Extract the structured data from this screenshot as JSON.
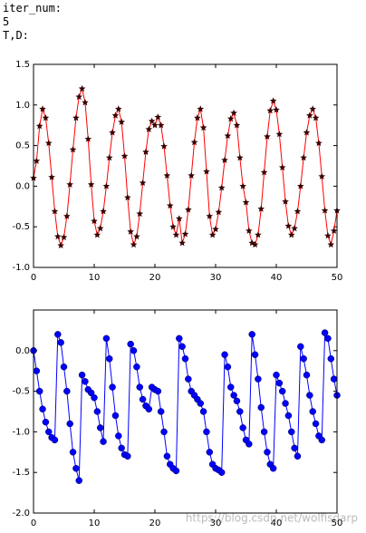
{
  "header": {
    "lines": [
      "iter_num:",
      "5",
      "T,D:"
    ]
  },
  "watermark": "https://blog.csdn.net/wolfisdarp",
  "chart_data": [
    {
      "type": "line",
      "marker": "star",
      "color": "#ff0000",
      "marker_color": "#3a0000",
      "x": [
        0,
        0.5,
        1,
        1.5,
        2,
        2.5,
        3,
        3.5,
        4,
        4.5,
        5,
        5.5,
        6,
        6.5,
        7,
        7.5,
        8,
        8.5,
        9,
        9.5,
        10,
        10.5,
        11,
        11.5,
        12,
        12.5,
        13,
        13.5,
        14,
        14.5,
        15,
        15.5,
        16,
        16.5,
        17,
        17.5,
        18,
        18.5,
        19,
        19.5,
        20,
        20.5,
        21,
        21.5,
        22,
        22.5,
        23,
        23.5,
        24,
        24.5,
        25,
        25.5,
        26,
        26.5,
        27,
        27.5,
        28,
        28.5,
        29,
        29.5,
        30,
        30.5,
        31,
        31.5,
        32,
        32.5,
        33,
        33.5,
        34,
        34.5,
        35,
        35.5,
        36,
        36.5,
        37,
        37.5,
        38,
        38.5,
        39,
        39.5,
        40,
        40.5,
        41,
        41.5,
        42,
        42.5,
        43,
        43.5,
        44,
        44.5,
        45,
        45.5,
        46,
        46.5,
        47,
        47.5,
        48,
        48.5,
        49,
        49.5,
        50
      ],
      "series": [
        {
          "values": [
            0.1,
            0.31,
            0.74,
            0.95,
            0.84,
            0.53,
            0.11,
            -0.31,
            -0.62,
            -0.73,
            -0.63,
            -0.37,
            0.02,
            0.45,
            0.84,
            1.1,
            1.2,
            1.03,
            0.58,
            0.02,
            -0.43,
            -0.6,
            -0.52,
            -0.31,
            0.0,
            0.35,
            0.66,
            0.87,
            0.95,
            0.79,
            0.37,
            -0.14,
            -0.56,
            -0.72,
            -0.62,
            -0.34,
            0.04,
            0.42,
            0.7,
            0.8,
            0.75,
            0.85,
            0.75,
            0.49,
            0.13,
            -0.24,
            -0.5,
            -0.6,
            -0.4,
            -0.7,
            -0.59,
            -0.29,
            0.13,
            0.54,
            0.84,
            0.95,
            0.72,
            0.18,
            -0.37,
            -0.6,
            -0.53,
            -0.32,
            -0.02,
            0.32,
            0.62,
            0.83,
            0.9,
            0.75,
            0.35,
            0.0,
            -0.2,
            -0.55,
            -0.7,
            -0.72,
            -0.6,
            -0.28,
            0.17,
            0.61,
            0.93,
            1.05,
            0.94,
            0.64,
            0.23,
            -0.19,
            -0.49,
            -0.6,
            -0.52,
            -0.31,
            0.0,
            0.35,
            0.66,
            0.87,
            0.95,
            0.84,
            0.53,
            0.12,
            -0.3,
            -0.61,
            -0.72,
            -0.55,
            -0.3
          ]
        }
      ],
      "xlim": [
        0,
        50
      ],
      "xticks": [
        0,
        10,
        20,
        30,
        40,
        50
      ],
      "ylim": [
        -1.0,
        1.5
      ],
      "yticks": [
        {
          "value": -1.0,
          "label": "-1.0"
        },
        -0.5,
        {
          "value": 0.0,
          "label": "0.0"
        },
        0.5,
        {
          "value": 1.0,
          "label": "1.0"
        },
        1.5
      ]
    },
    {
      "type": "line",
      "marker": "circle",
      "color": "#0000ff",
      "marker_color": "#0000ff",
      "x": [
        0,
        0.5,
        1,
        1.5,
        2,
        2.5,
        3,
        3.5,
        4,
        4.5,
        5,
        5.5,
        6,
        6.5,
        7,
        7.5,
        8,
        8.5,
        9,
        9.5,
        10,
        10.5,
        11,
        11.5,
        12,
        12.5,
        13,
        13.5,
        14,
        14.5,
        15,
        15.5,
        16,
        16.5,
        17,
        17.5,
        18,
        18.5,
        19,
        19.5,
        20,
        20.5,
        21,
        21.5,
        22,
        22.5,
        23,
        23.5,
        24,
        24.5,
        25,
        25.5,
        26,
        26.5,
        27,
        27.5,
        28,
        28.5,
        29,
        29.5,
        30,
        30.5,
        31,
        31.5,
        32,
        32.5,
        33,
        33.5,
        34,
        34.5,
        35,
        35.5,
        36,
        36.5,
        37,
        37.5,
        38,
        38.5,
        39,
        39.5,
        40,
        40.5,
        41,
        41.5,
        42,
        42.5,
        43,
        43.5,
        44,
        44.5,
        45,
        45.5,
        46,
        46.5,
        47,
        47.5,
        48,
        48.5,
        49,
        49.5,
        50
      ],
      "series": [
        {
          "values": [
            0,
            -0.25,
            -0.5,
            -0.72,
            -0.88,
            -1.0,
            -1.07,
            -1.1,
            0.2,
            0.1,
            -0.2,
            -0.5,
            -0.9,
            -1.25,
            -1.45,
            -1.6,
            -0.3,
            -0.38,
            -0.48,
            -0.52,
            -0.58,
            -0.75,
            -0.95,
            -1.12,
            0.15,
            -0.1,
            -0.45,
            -0.8,
            -1.05,
            -1.2,
            -1.28,
            -1.3,
            0.08,
            0.0,
            -0.2,
            -0.45,
            -0.6,
            -0.68,
            -0.72,
            -0.45,
            -0.48,
            -0.5,
            -0.75,
            -1.0,
            -1.3,
            -1.4,
            -1.45,
            -1.48,
            0.15,
            0.05,
            -0.1,
            -0.35,
            -0.5,
            -0.55,
            -0.6,
            -0.65,
            -0.75,
            -1.0,
            -1.25,
            -1.4,
            -1.45,
            -1.47,
            -1.5,
            -0.05,
            -0.2,
            -0.45,
            -0.55,
            -0.62,
            -0.75,
            -0.95,
            -1.1,
            -1.15,
            0.2,
            -0.05,
            -0.35,
            -0.7,
            -1.0,
            -1.25,
            -1.4,
            -1.45,
            -0.3,
            -0.4,
            -0.5,
            -0.65,
            -0.8,
            -1.0,
            -1.2,
            -1.3,
            0.05,
            -0.1,
            -0.3,
            -0.55,
            -0.75,
            -0.9,
            -1.05,
            -1.1,
            0.22,
            0.15,
            -0.1,
            -0.35,
            -0.55
          ]
        }
      ],
      "xlim": [
        0,
        50
      ],
      "xticks": [
        0,
        10,
        20,
        30,
        40,
        50
      ],
      "ylim": [
        -2.0,
        0.5
      ],
      "yticks": [
        {
          "value": -2.0,
          "label": "-2.0"
        },
        -1.5,
        {
          "value": -1.0,
          "label": "-1.0"
        },
        -0.5,
        {
          "value": 0.0,
          "label": "0.0"
        }
      ]
    }
  ]
}
